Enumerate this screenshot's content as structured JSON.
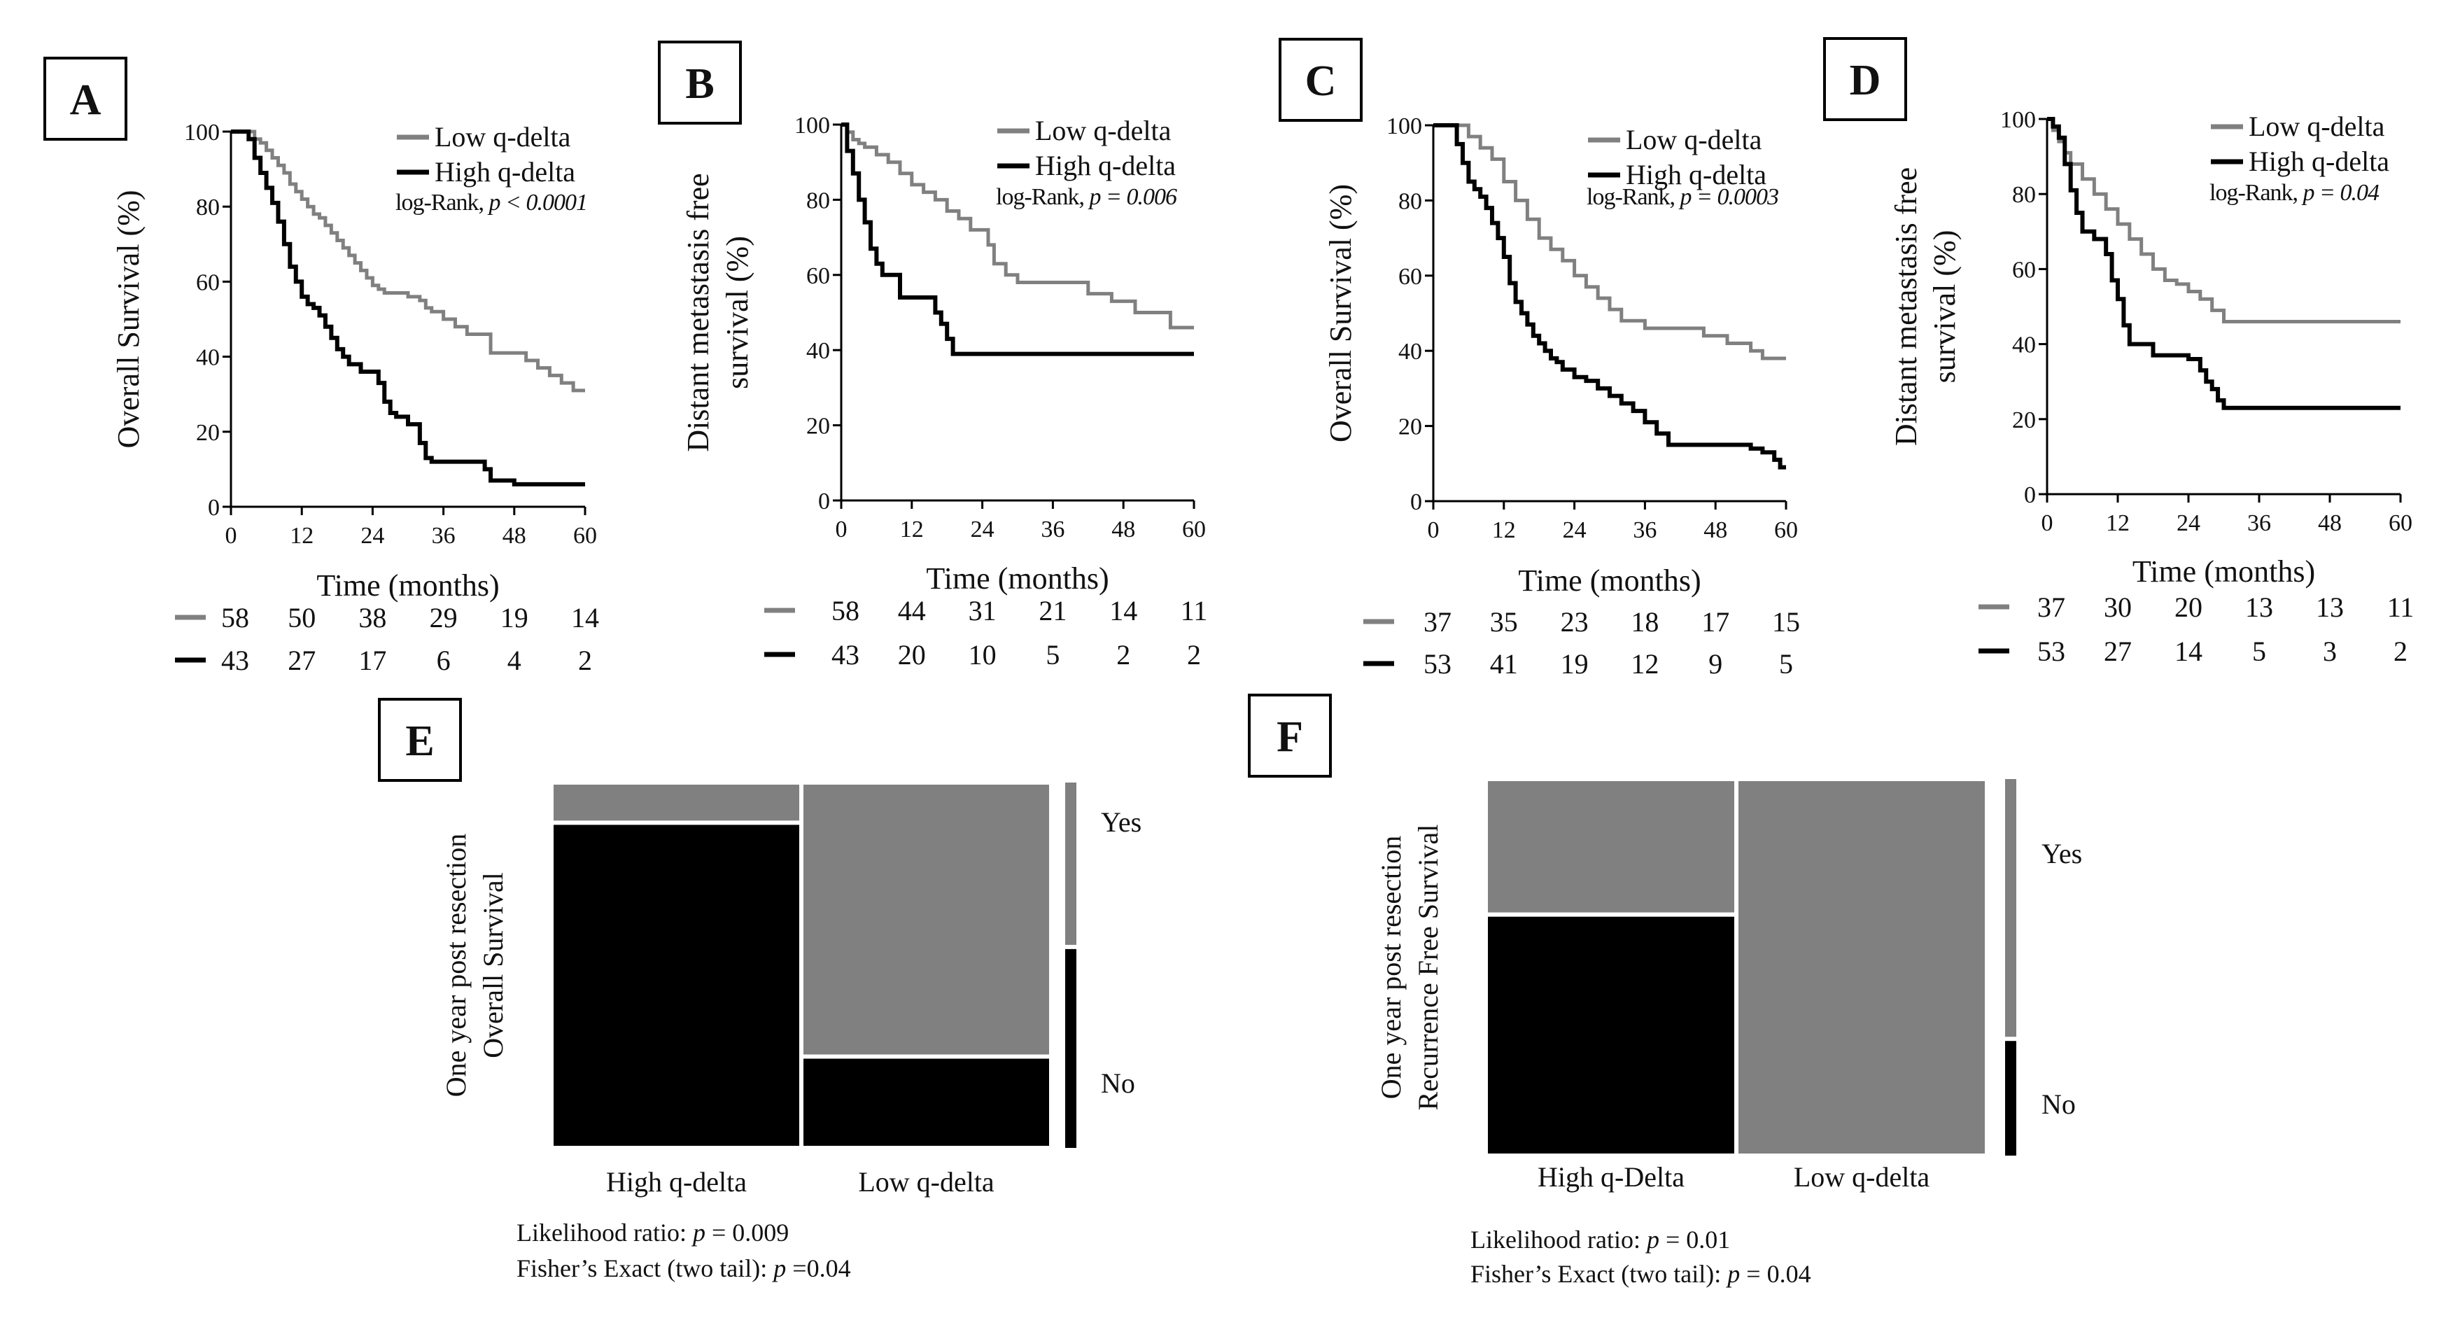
{
  "colors": {
    "low": "#808080",
    "high": "#000000",
    "text": "#111111",
    "box": "#000000"
  },
  "chart_data": [
    {
      "id": "A",
      "type": "line",
      "subtype": "kaplan-meier",
      "panel_label": "A",
      "ylabel": "Overall Survival (%)",
      "ylabel2": "",
      "xlabel": "Time (months)",
      "xlim": [
        0,
        60
      ],
      "ylim": [
        0,
        100
      ],
      "xticks": [
        0,
        12,
        24,
        36,
        48,
        60
      ],
      "yticks": [
        0,
        20,
        40,
        60,
        80,
        100
      ],
      "legend": [
        "Low q-delta",
        "High q-delta"
      ],
      "stat_label": "log-Rank, ",
      "stat_p": "p < 0.0001",
      "series": [
        {
          "name": "Low q-delta",
          "color": "#808080",
          "x": [
            0,
            4,
            5,
            6,
            7,
            8,
            9,
            10,
            11,
            12,
            13,
            14,
            15,
            16,
            17,
            18,
            19,
            20,
            21,
            22,
            23,
            24,
            25,
            26,
            28,
            30,
            32,
            33,
            34,
            36,
            38,
            40,
            44,
            48,
            50,
            52,
            54,
            56,
            58,
            60
          ],
          "y": [
            100,
            98,
            97,
            95,
            93,
            91,
            89,
            86,
            84,
            82,
            80,
            78,
            77,
            75,
            73,
            71,
            69,
            67,
            65,
            63,
            61,
            59,
            58,
            57,
            57,
            56,
            55,
            53,
            52,
            50,
            48,
            46,
            41,
            41,
            39,
            37,
            35,
            33,
            31,
            31
          ]
        },
        {
          "name": "High q-delta",
          "color": "#000000",
          "x": [
            0,
            3,
            4,
            5,
            6,
            7,
            8,
            9,
            10,
            11,
            12,
            13,
            14,
            15,
            16,
            17,
            18,
            19,
            20,
            22,
            24,
            25,
            26,
            27,
            28,
            30,
            32,
            33,
            34,
            36,
            38,
            40,
            43,
            44,
            48,
            60
          ],
          "y": [
            100,
            98,
            93,
            89,
            85,
            81,
            76,
            70,
            64,
            60,
            56,
            54,
            53,
            51,
            48,
            45,
            42,
            40,
            38,
            36,
            36,
            33,
            28,
            25,
            24,
            22,
            17,
            13,
            12,
            12,
            12,
            12,
            10,
            7,
            6,
            6
          ]
        }
      ],
      "risk_table": [
        {
          "color": "#808080",
          "values": [
            "58",
            "50",
            "38",
            "29",
            "19",
            "14"
          ]
        },
        {
          "color": "#000000",
          "values": [
            "43",
            "27",
            "17",
            "6",
            "4",
            "2"
          ]
        }
      ]
    },
    {
      "id": "B",
      "type": "line",
      "subtype": "kaplan-meier",
      "panel_label": "B",
      "ylabel": "Distant metastasis free",
      "ylabel2": "survival (%)",
      "xlabel": "Time (months)",
      "xlim": [
        0,
        60
      ],
      "ylim": [
        0,
        100
      ],
      "xticks": [
        0,
        12,
        24,
        36,
        48,
        60
      ],
      "yticks": [
        0,
        20,
        40,
        60,
        80,
        100
      ],
      "legend": [
        "Low q-delta",
        "High q-delta"
      ],
      "stat_label": "log-Rank, ",
      "stat_p": "p = 0.006",
      "series": [
        {
          "name": "Low q-delta",
          "color": "#808080",
          "x": [
            0,
            1,
            2,
            3,
            4,
            6,
            8,
            10,
            12,
            14,
            16,
            18,
            20,
            22,
            24,
            25,
            26,
            28,
            30,
            36,
            40,
            42,
            46,
            50,
            56,
            60
          ],
          "y": [
            100,
            98,
            96,
            95,
            94,
            92,
            90,
            87,
            84,
            82,
            80,
            77,
            75,
            72,
            72,
            68,
            63,
            60,
            58,
            58,
            58,
            55,
            53,
            50,
            46,
            46
          ]
        },
        {
          "name": "High q-delta",
          "color": "#000000",
          "x": [
            0,
            1,
            2,
            3,
            4,
            5,
            6,
            7,
            8,
            10,
            12,
            14,
            16,
            17,
            18,
            19,
            20,
            60
          ],
          "y": [
            100,
            93,
            87,
            80,
            74,
            67,
            63,
            60,
            60,
            54,
            54,
            54,
            50,
            47,
            43,
            39,
            39,
            39
          ]
        }
      ],
      "risk_table": [
        {
          "color": "#808080",
          "values": [
            "58",
            "44",
            "31",
            "21",
            "14",
            "11"
          ]
        },
        {
          "color": "#000000",
          "values": [
            "43",
            "20",
            "10",
            "5",
            "2",
            "2"
          ]
        }
      ]
    },
    {
      "id": "C",
      "type": "line",
      "subtype": "kaplan-meier",
      "panel_label": "C",
      "ylabel": "Overall Survival (%)",
      "ylabel2": "",
      "xlabel": "Time (months)",
      "xlim": [
        0,
        60
      ],
      "ylim": [
        0,
        100
      ],
      "xticks": [
        0,
        12,
        24,
        36,
        48,
        60
      ],
      "yticks": [
        0,
        20,
        40,
        60,
        80,
        100
      ],
      "legend": [
        "Low q-delta",
        "High q-delta"
      ],
      "stat_label": "log-Rank, ",
      "stat_p": "p = 0.0003",
      "series": [
        {
          "name": "Low q-delta",
          "color": "#808080",
          "x": [
            0,
            6,
            8,
            10,
            12,
            14,
            16,
            18,
            20,
            22,
            24,
            26,
            28,
            30,
            32,
            36,
            42,
            46,
            50,
            54,
            56,
            60
          ],
          "y": [
            100,
            97,
            94,
            91,
            85,
            80,
            75,
            70,
            67,
            64,
            60,
            57,
            54,
            51,
            48,
            46,
            46,
            44,
            42,
            40,
            38,
            38
          ]
        },
        {
          "name": "High q-delta",
          "color": "#000000",
          "x": [
            0,
            4,
            5,
            6,
            7,
            8,
            9,
            10,
            11,
            12,
            13,
            14,
            15,
            16,
            17,
            18,
            19,
            20,
            21,
            22,
            24,
            26,
            28,
            30,
            32,
            34,
            36,
            38,
            40,
            48,
            52,
            54,
            56,
            58,
            59,
            60
          ],
          "y": [
            100,
            95,
            90,
            85,
            83,
            81,
            78,
            74,
            70,
            65,
            58,
            53,
            50,
            47,
            44,
            42,
            40,
            38,
            37,
            35,
            33,
            32,
            30,
            28,
            26,
            24,
            21,
            18,
            15,
            15,
            15,
            14,
            13,
            11,
            9,
            9
          ]
        }
      ],
      "risk_table": [
        {
          "color": "#808080",
          "values": [
            "37",
            "35",
            "23",
            "18",
            "17",
            "15"
          ]
        },
        {
          "color": "#000000",
          "values": [
            "53",
            "41",
            "19",
            "12",
            "9",
            "5"
          ]
        }
      ]
    },
    {
      "id": "D",
      "type": "line",
      "subtype": "kaplan-meier",
      "panel_label": "D",
      "ylabel": "Distant metastasis free",
      "ylabel2": "survival (%)",
      "xlabel": "Time (months)",
      "xlim": [
        0,
        60
      ],
      "ylim": [
        0,
        100
      ],
      "xticks": [
        0,
        12,
        24,
        36,
        48,
        60
      ],
      "yticks": [
        0,
        20,
        40,
        60,
        80,
        100
      ],
      "legend": [
        "Low q-delta",
        "High q-delta"
      ],
      "stat_label": "log-Rank, ",
      "stat_p": "p = 0.04",
      "series": [
        {
          "name": "Low q-delta",
          "color": "#808080",
          "x": [
            0,
            1,
            2,
            3,
            4,
            6,
            8,
            10,
            12,
            14,
            16,
            18,
            20,
            22,
            24,
            26,
            28,
            30,
            32,
            60
          ],
          "y": [
            100,
            97,
            94,
            91,
            88,
            84,
            80,
            76,
            72,
            68,
            64,
            60,
            57,
            56,
            54,
            52,
            49,
            46,
            46,
            46
          ]
        },
        {
          "name": "High q-delta",
          "color": "#000000",
          "x": [
            0,
            1,
            2,
            3,
            4,
            5,
            6,
            8,
            10,
            11,
            12,
            13,
            14,
            16,
            18,
            20,
            24,
            26,
            27,
            28,
            29,
            30,
            60
          ],
          "y": [
            100,
            98,
            95,
            88,
            81,
            75,
            70,
            68,
            64,
            57,
            52,
            45,
            40,
            40,
            37,
            37,
            36,
            33,
            30,
            28,
            25,
            23,
            23
          ]
        }
      ],
      "risk_table": [
        {
          "color": "#808080",
          "values": [
            "37",
            "30",
            "20",
            "13",
            "13",
            "11"
          ]
        },
        {
          "color": "#000000",
          "values": [
            "53",
            "27",
            "14",
            "5",
            "3",
            "2"
          ]
        }
      ]
    },
    {
      "id": "E",
      "type": "mosaic",
      "panel_label": "E",
      "ylabel": "One year post resection",
      "ylabel2": "Overall Survival",
      "categories": [
        "High q-delta",
        "Low q-delta"
      ],
      "column_widths": [
        0.5,
        0.5
      ],
      "yes_fraction": [
        0.11,
        0.75
      ],
      "legend_split": 0.45,
      "outcomes": [
        "Yes",
        "No"
      ],
      "stat_lines": [
        {
          "label": "Likelihood ratio: ",
          "p": "p",
          "value": " = 0.009"
        },
        {
          "label": "Fisher’s Exact (two tail): ",
          "p": "p",
          "value": " =0.04"
        }
      ]
    },
    {
      "id": "F",
      "type": "mosaic",
      "panel_label": "F",
      "ylabel": "One year post resection",
      "ylabel2": "Recurrence Free Survival",
      "categories": [
        "High q-Delta",
        "Low q-delta"
      ],
      "column_widths": [
        0.5,
        0.5
      ],
      "yes_fraction": [
        0.36,
        1.0
      ],
      "legend_split": 0.69,
      "outcomes": [
        "Yes",
        "No"
      ],
      "stat_lines": [
        {
          "label": "Likelihood ratio: ",
          "p": "p",
          "value": " = 0.01"
        },
        {
          "label": "Fisher’s Exact (two tail): ",
          "p": "p",
          "value": " = 0.04"
        }
      ]
    }
  ]
}
